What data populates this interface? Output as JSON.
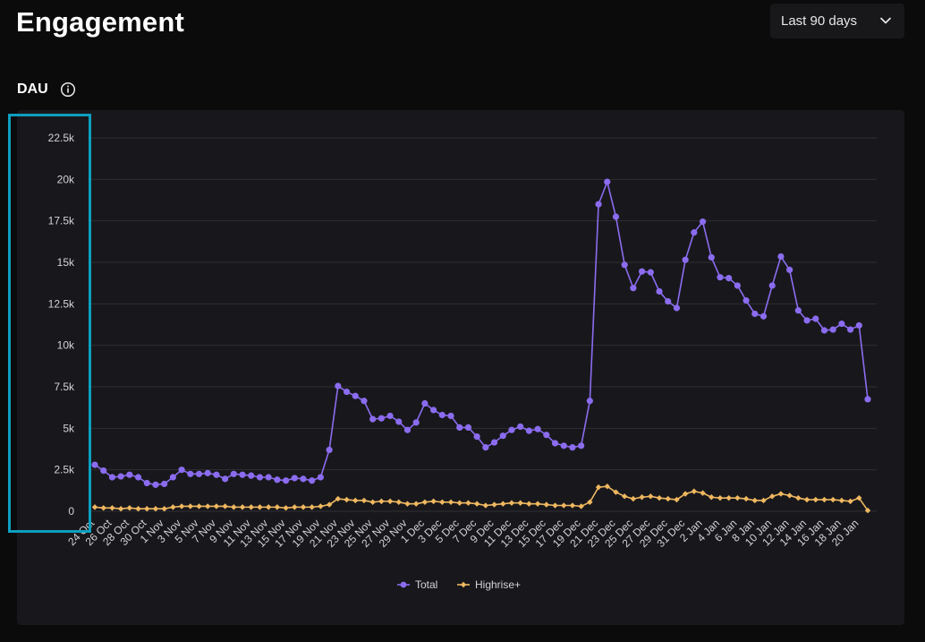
{
  "header": {
    "title": "Engagement",
    "range_select": {
      "value": "Last 90 days"
    }
  },
  "section": {
    "label": "DAU",
    "info_icon": "info-icon",
    "dropdown_icon": "chevron-down-icon"
  },
  "colors": {
    "background": "#0b0b0c",
    "card": "#18181c",
    "grid": "#2e2e33",
    "total": "#8b6cf0",
    "highrise": "#f0b860",
    "highlight": "#0d9fbf"
  },
  "chart_data": {
    "type": "line",
    "title": "",
    "xlabel": "",
    "ylabel": "",
    "ylim": [
      0,
      22500
    ],
    "yticks": [
      0,
      2500,
      5000,
      7500,
      10000,
      12500,
      15000,
      17500,
      20000,
      22500
    ],
    "ytick_labels": [
      "0",
      "2.5k",
      "5k",
      "7.5k",
      "10k",
      "12.5k",
      "15k",
      "17.5k",
      "20k",
      "22.5k"
    ],
    "grid": true,
    "legend": "bottom-center",
    "x": [
      "24 Oct",
      "25 Oct",
      "26 Oct",
      "27 Oct",
      "28 Oct",
      "29 Oct",
      "30 Oct",
      "31 Oct",
      "1 Nov",
      "2 Nov",
      "3 Nov",
      "4 Nov",
      "5 Nov",
      "6 Nov",
      "7 Nov",
      "8 Nov",
      "9 Nov",
      "10 Nov",
      "11 Nov",
      "12 Nov",
      "13 Nov",
      "14 Nov",
      "15 Nov",
      "16 Nov",
      "17 Nov",
      "18 Nov",
      "19 Nov",
      "20 Nov",
      "21 Nov",
      "22 Nov",
      "23 Nov",
      "24 Nov",
      "25 Nov",
      "26 Nov",
      "27 Nov",
      "28 Nov",
      "29 Nov",
      "30 Nov",
      "1 Dec",
      "2 Dec",
      "3 Dec",
      "4 Dec",
      "5 Dec",
      "6 Dec",
      "7 Dec",
      "8 Dec",
      "9 Dec",
      "10 Dec",
      "11 Dec",
      "12 Dec",
      "13 Dec",
      "14 Dec",
      "15 Dec",
      "16 Dec",
      "17 Dec",
      "18 Dec",
      "19 Dec",
      "20 Dec",
      "21 Dec",
      "22 Dec",
      "23 Dec",
      "24 Dec",
      "25 Dec",
      "26 Dec",
      "27 Dec",
      "28 Dec",
      "29 Dec",
      "30 Dec",
      "31 Dec",
      "1 Jan",
      "2 Jan",
      "3 Jan",
      "4 Jan",
      "5 Jan",
      "6 Jan",
      "7 Jan",
      "8 Jan",
      "9 Jan",
      "10 Jan",
      "11 Jan",
      "12 Jan",
      "13 Jan",
      "14 Jan",
      "15 Jan",
      "16 Jan",
      "17 Jan",
      "18 Jan",
      "19 Jan",
      "20 Jan",
      "21 Jan"
    ],
    "xtick_labels": [
      "24 Oct",
      "26 Oct",
      "28 Oct",
      "30 Oct",
      "1 Nov",
      "3 Nov",
      "5 Nov",
      "7 Nov",
      "9 Nov",
      "11 Nov",
      "13 Nov",
      "15 Nov",
      "17 Nov",
      "19 Nov",
      "21 Nov",
      "23 Nov",
      "25 Nov",
      "27 Nov",
      "29 Nov",
      "1 Dec",
      "3 Dec",
      "5 Dec",
      "7 Dec",
      "9 Dec",
      "11 Dec",
      "13 Dec",
      "15 Dec",
      "17 Dec",
      "19 Dec",
      "21 Dec",
      "23 Dec",
      "25 Dec",
      "27 Dec",
      "29 Dec",
      "31 Dec",
      "2 Jan",
      "4 Jan",
      "6 Jan",
      "8 Jan",
      "10 Jan",
      "12 Jan",
      "14 Jan",
      "16 Jan",
      "18 Jan",
      "20 Jan"
    ],
    "series": [
      {
        "name": "Total",
        "color": "#8b6cf0",
        "marker": "circle",
        "values": [
          2800,
          2450,
          2050,
          2100,
          2200,
          2050,
          1700,
          1600,
          1650,
          2050,
          2500,
          2250,
          2250,
          2300,
          2200,
          1950,
          2250,
          2200,
          2150,
          2050,
          2050,
          1900,
          1850,
          2000,
          1950,
          1850,
          2050,
          3700,
          7550,
          7200,
          6950,
          6650,
          5550,
          5600,
          5750,
          5400,
          4900,
          5350,
          6500,
          6100,
          5800,
          5750,
          5050,
          5050,
          4500,
          3850,
          4150,
          4550,
          4900,
          5100,
          4850,
          4950,
          4600,
          4100,
          3950,
          3850,
          3950,
          6650,
          18500,
          19850,
          17750,
          14850,
          13450,
          14450,
          14400,
          13250,
          12650,
          12250,
          15150,
          16800,
          17450,
          15300,
          14100,
          14050,
          13600,
          12700,
          11900,
          11750,
          13600,
          15350,
          14550,
          12100,
          11500,
          11600,
          10900,
          10950,
          11300,
          10950,
          11200,
          6750
        ]
      },
      {
        "name": "Highrise+",
        "color": "#f0b860",
        "marker": "diamond",
        "values": [
          250,
          200,
          200,
          150,
          200,
          150,
          150,
          150,
          150,
          250,
          300,
          300,
          300,
          300,
          300,
          300,
          250,
          250,
          250,
          250,
          250,
          250,
          200,
          250,
          250,
          250,
          300,
          400,
          750,
          700,
          650,
          650,
          550,
          600,
          600,
          550,
          450,
          450,
          550,
          600,
          550,
          550,
          500,
          500,
          450,
          350,
          400,
          450,
          500,
          500,
          450,
          450,
          400,
          350,
          350,
          350,
          300,
          550,
          1450,
          1500,
          1150,
          900,
          750,
          850,
          900,
          800,
          750,
          700,
          1050,
          1200,
          1100,
          850,
          800,
          800,
          800,
          750,
          650,
          650,
          900,
          1050,
          950,
          800,
          700,
          700,
          700,
          700,
          650,
          600,
          800,
          50
        ]
      }
    ]
  }
}
